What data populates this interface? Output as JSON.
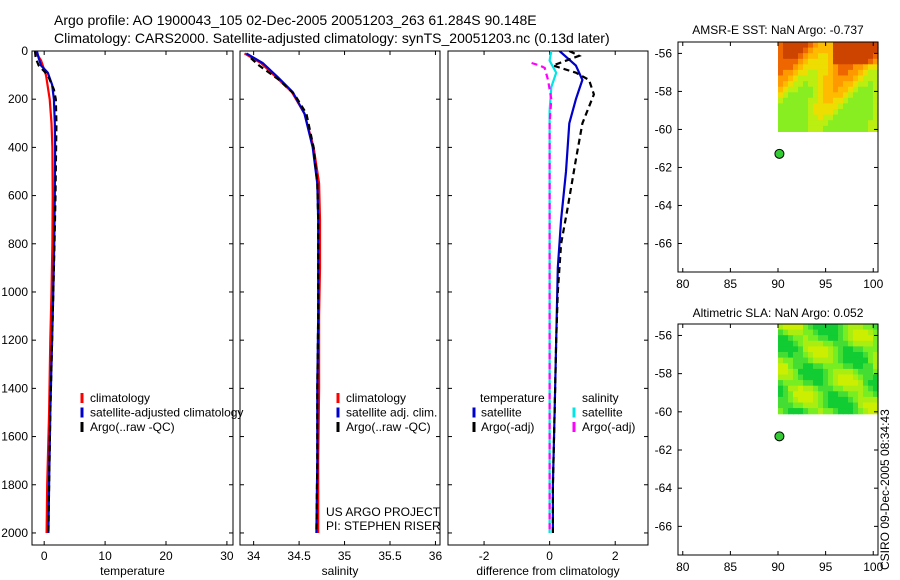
{
  "header": {
    "line1": "Argo profile: AO 1900043_105 02-Dec-2005 20051203_263 61.284S 90.148E",
    "line2": "Climatology: CARS2000. Satellite-adjusted climatology: synTS_20051203.nc (0.13d later)"
  },
  "side_label": "CSIRO 09-Dec-2005 08:34:43",
  "colors": {
    "red": "#ff0000",
    "blue": "#0000cc",
    "black": "#000000",
    "cyan": "#00e5e5",
    "magenta": "#ff00ff",
    "green": "#33cc33"
  },
  "chart_data": [
    {
      "type": "line",
      "id": "temperature",
      "xlabel": "temperature",
      "xlim": [
        -2,
        31
      ],
      "ylim": [
        2050,
        0
      ],
      "xticks": [
        0,
        10,
        20,
        30
      ],
      "yticks": [
        0,
        200,
        400,
        600,
        800,
        1000,
        1200,
        1400,
        1600,
        1800,
        2000
      ],
      "legend": [
        "climatology",
        "satellite-adjusted climatology",
        "Argo(..raw -QC)"
      ],
      "series": [
        {
          "name": "climatology",
          "color": "red",
          "dash": "",
          "points": [
            [
              -1.5,
              0
            ],
            [
              -0.5,
              40
            ],
            [
              0.3,
              100
            ],
            [
              0.9,
              200
            ],
            [
              1.2,
              300
            ],
            [
              1.35,
              400
            ],
            [
              1.4,
              600
            ],
            [
              1.35,
              800
            ],
            [
              1.2,
              1000
            ],
            [
              1.0,
              1200
            ],
            [
              0.8,
              1500
            ],
            [
              0.5,
              1800
            ],
            [
              0.4,
              2000
            ]
          ]
        },
        {
          "name": "satellite-adjusted climatology",
          "color": "blue",
          "dash": "",
          "points": [
            [
              -1.2,
              0
            ],
            [
              -0.9,
              30
            ],
            [
              -0.5,
              60
            ],
            [
              0.6,
              90
            ],
            [
              1.3,
              140
            ],
            [
              1.6,
              200
            ],
            [
              1.75,
              300
            ],
            [
              1.8,
              400
            ],
            [
              1.75,
              600
            ],
            [
              1.65,
              800
            ],
            [
              1.5,
              1000
            ],
            [
              1.3,
              1200
            ],
            [
              1.0,
              1500
            ],
            [
              0.8,
              1800
            ],
            [
              0.7,
              2000
            ]
          ]
        },
        {
          "name": "Argo(..raw -QC)",
          "color": "black",
          "dash": "6,4",
          "points": [
            [
              -1.5,
              0
            ],
            [
              -1.4,
              30
            ],
            [
              -0.9,
              60
            ],
            [
              0.6,
              100
            ],
            [
              1.6,
              160
            ],
            [
              1.9,
              200
            ],
            [
              2.0,
              300
            ],
            [
              1.95,
              400
            ],
            [
              1.85,
              600
            ],
            [
              1.7,
              800
            ],
            [
              1.5,
              1000
            ],
            [
              1.3,
              1200
            ],
            [
              1.0,
              1500
            ],
            [
              0.8,
              1800
            ],
            [
              0.7,
              2000
            ]
          ]
        }
      ]
    },
    {
      "type": "line",
      "id": "salinity",
      "xlabel": "salinity",
      "xlim": [
        33.85,
        36.05
      ],
      "ylim": [
        2050,
        0
      ],
      "xticks": [
        34,
        34.5,
        35,
        35.5,
        36
      ],
      "xticklabels": [
        "34",
        "34.5",
        "35",
        "35.5",
        "36"
      ],
      "legend": [
        "climatology",
        "satellite adj. clim.",
        "Argo(..raw -QC)"
      ],
      "annotation": [
        "US ARGO PROJECT",
        "PI: STEPHEN RISER"
      ],
      "series": [
        {
          "name": "climatology",
          "color": "red",
          "dash": "",
          "points": [
            [
              33.9,
              10
            ],
            [
              34.08,
              50
            ],
            [
              34.25,
              110
            ],
            [
              34.42,
              170
            ],
            [
              34.56,
              260
            ],
            [
              34.66,
              400
            ],
            [
              34.72,
              550
            ],
            [
              34.73,
              700
            ],
            [
              34.73,
              900
            ],
            [
              34.72,
              1100
            ],
            [
              34.72,
              1400
            ],
            [
              34.71,
              1700
            ],
            [
              34.71,
              2000
            ]
          ]
        },
        {
          "name": "satellite adj. clim.",
          "color": "blue",
          "dash": "",
          "points": [
            [
              33.92,
              10
            ],
            [
              34.1,
              50
            ],
            [
              34.27,
              110
            ],
            [
              34.43,
              170
            ],
            [
              34.56,
              260
            ],
            [
              34.65,
              400
            ],
            [
              34.7,
              550
            ],
            [
              34.71,
              700
            ],
            [
              34.71,
              900
            ],
            [
              34.71,
              1100
            ],
            [
              34.7,
              1400
            ],
            [
              34.7,
              1700
            ],
            [
              34.69,
              2000
            ]
          ]
        },
        {
          "name": "Argo(..raw -QC)",
          "color": "black",
          "dash": "6,4",
          "points": [
            [
              33.97,
              30
            ],
            [
              34.06,
              60
            ],
            [
              34.28,
              120
            ],
            [
              34.45,
              180
            ],
            [
              34.58,
              260
            ],
            [
              34.66,
              400
            ],
            [
              34.7,
              550
            ],
            [
              34.71,
              700
            ],
            [
              34.71,
              900
            ],
            [
              34.71,
              1100
            ],
            [
              34.7,
              1400
            ],
            [
              34.7,
              1700
            ],
            [
              34.69,
              2000
            ]
          ]
        }
      ]
    },
    {
      "type": "line",
      "id": "difference",
      "xlabel": "difference from climatology",
      "xlim": [
        -3.1,
        3.0
      ],
      "ylim": [
        2050,
        0
      ],
      "xticks": [
        -2,
        0,
        2
      ],
      "legend_left_title": "temperature",
      "legend_right_title": "salinity",
      "legend_left": [
        "satellite",
        "Argo(-adj)"
      ],
      "legend_right": [
        "satellite",
        "Argo(-adj)"
      ],
      "series": [
        {
          "name": "temperature satellite",
          "color": "blue",
          "dash": "",
          "points": [
            [
              0.3,
              0
            ],
            [
              0.8,
              60
            ],
            [
              1.0,
              120
            ],
            [
              0.9,
              160
            ],
            [
              0.8,
              200
            ],
            [
              0.6,
              300
            ],
            [
              0.5,
              500
            ],
            [
              0.35,
              700
            ],
            [
              0.25,
              900
            ],
            [
              0.2,
              1200
            ],
            [
              0.15,
              1500
            ],
            [
              0.1,
              1800
            ],
            [
              0.1,
              2000
            ]
          ]
        },
        {
          "name": "temperature Argo(-adj)",
          "color": "black",
          "dash": "6,4",
          "points": [
            [
              0.6,
              0
            ],
            [
              0.9,
              20
            ],
            [
              0.1,
              60
            ],
            [
              0.8,
              90
            ],
            [
              1.2,
              120
            ],
            [
              1.35,
              180
            ],
            [
              1.0,
              300
            ],
            [
              0.8,
              450
            ],
            [
              0.55,
              650
            ],
            [
              0.35,
              800
            ],
            [
              0.25,
              1000
            ],
            [
              0.2,
              1200
            ],
            [
              0.15,
              1500
            ],
            [
              0.1,
              1800
            ],
            [
              0.1,
              2000
            ]
          ]
        },
        {
          "name": "salinity satellite",
          "color": "cyan",
          "dash": "",
          "points": [
            [
              0.05,
              0
            ],
            [
              0.0,
              40
            ],
            [
              0.2,
              90
            ],
            [
              0.05,
              150
            ],
            [
              0.0,
              250
            ],
            [
              0.0,
              500
            ],
            [
              0.0,
              800
            ],
            [
              0.0,
              1200
            ],
            [
              0.0,
              1600
            ],
            [
              0.0,
              2000
            ]
          ]
        },
        {
          "name": "salinity Argo(-adj)",
          "color": "magenta",
          "dash": "6,4",
          "points": [
            [
              -0.55,
              50
            ],
            [
              -0.3,
              60
            ],
            [
              -0.15,
              70
            ],
            [
              -0.05,
              120
            ],
            [
              0.05,
              200
            ],
            [
              0.0,
              300
            ],
            [
              0.0,
              600
            ],
            [
              0.0,
              1000
            ],
            [
              0.0,
              1400
            ],
            [
              0.0,
              2000
            ]
          ]
        }
      ]
    },
    {
      "type": "heatmap",
      "id": "amsre-sst",
      "title": "AMSR-E SST: NaN Argo: -0.737",
      "xlim": [
        79.5,
        100.5
      ],
      "ylim": [
        -67.5,
        -55.4
      ],
      "xticks": [
        80,
        85,
        90,
        95,
        100
      ],
      "yticks": [
        -56,
        -58,
        -60,
        -62,
        -64,
        -66
      ],
      "field_lon": [
        90.0,
        100.5
      ],
      "field_lat": [
        -60.1,
        -55.4
      ],
      "palette": [
        "#88ee22",
        "#bbee11",
        "#eedd00",
        "#ffbb00",
        "#ff9900",
        "#ee6600",
        "#cc4400"
      ],
      "argo_point": {
        "lon": 90.148,
        "lat": -61.284
      }
    },
    {
      "type": "heatmap",
      "id": "altimetric-sla",
      "title": "Altimetric SLA: NaN Argo: 0.052",
      "xlim": [
        79.5,
        100.5
      ],
      "ylim": [
        -67.5,
        -55.4
      ],
      "xticks": [
        80,
        85,
        90,
        95,
        100
      ],
      "yticks": [
        -56,
        -58,
        -60,
        -62,
        -64,
        -66
      ],
      "field_lon": [
        90.0,
        100.5
      ],
      "field_lat": [
        -60.1,
        -55.4
      ],
      "palette": [
        "#11cc33",
        "#44dd33",
        "#77ee22",
        "#aaee11",
        "#ccee00"
      ],
      "argo_point": {
        "lon": 90.148,
        "lat": -61.284
      }
    }
  ]
}
